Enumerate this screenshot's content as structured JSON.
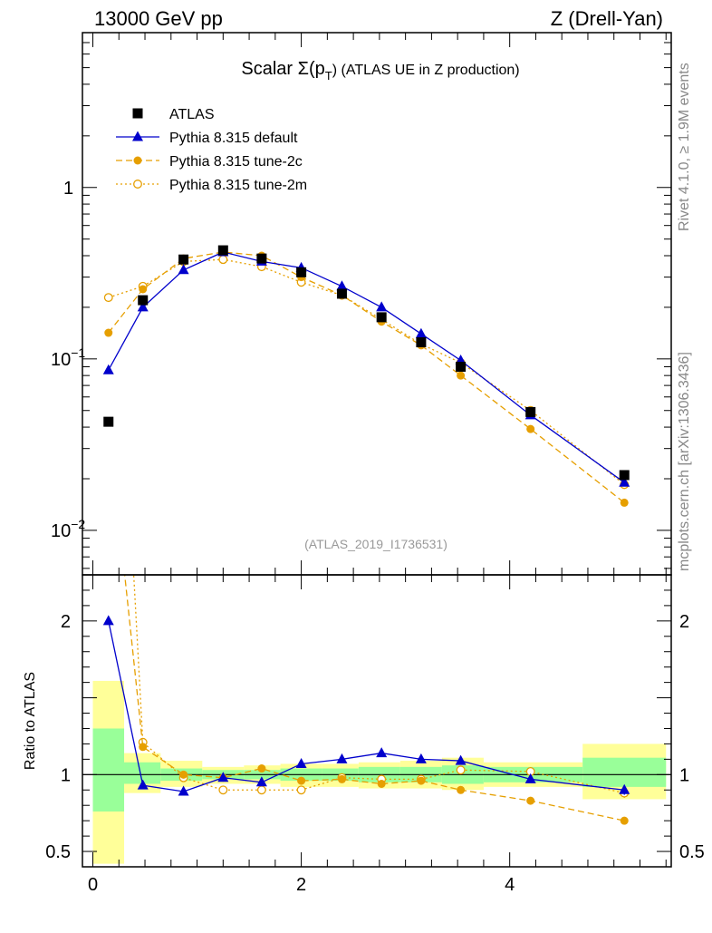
{
  "header": {
    "left": "13000 GeV pp",
    "right": "Z (Drell-Yan)"
  },
  "side_labels": {
    "rivet": "Rivet 4.1.0, ≥ 1.9M events",
    "mcplots": "mcplots.cern.ch [arXiv:1306.3436]"
  },
  "plot": {
    "title_prefix": "Scalar Σ(p",
    "title_sub": "T",
    "title_suffix": ") (ATLAS UE in Z production)",
    "analysis_id": "(ATLAS_2019_I1736531)",
    "ratio_ylabel": "Ratio to ATLAS"
  },
  "chart_data": {
    "type": "line",
    "x": [
      0.15,
      0.48,
      0.87,
      1.25,
      1.62,
      2.0,
      2.39,
      2.77,
      3.15,
      3.53,
      4.2,
      5.1
    ],
    "bin_edges": [
      0.0,
      0.3,
      0.65,
      1.05,
      1.45,
      1.8,
      2.2,
      2.55,
      2.95,
      3.35,
      3.75,
      4.7,
      5.5
    ],
    "main_panel": {
      "yscale": "log",
      "ylim": [
        0.0055,
        8.0
      ],
      "xlim": [
        -0.1,
        5.55
      ],
      "yticks": [
        {
          "value": 0.01,
          "base": "10",
          "exp": "−2"
        },
        {
          "value": 0.1,
          "base": "10",
          "exp": "−1"
        },
        {
          "value": 1,
          "base": "1",
          "exp": ""
        }
      ]
    },
    "ratio_panel": {
      "ylim": [
        0.4,
        2.3
      ],
      "yticks": [
        "0.5",
        "1",
        "2"
      ],
      "xticks": [
        "0",
        "2",
        "4"
      ]
    },
    "series": [
      {
        "name": "ATLAS",
        "color": "#000000",
        "marker": "square",
        "values": [
          0.043,
          0.22,
          0.38,
          0.43,
          0.385,
          0.32,
          0.24,
          0.175,
          0.125,
          0.09,
          0.049,
          0.021
        ],
        "ratio": [
          1,
          1,
          1,
          1,
          1,
          1,
          1,
          1,
          1,
          1,
          1,
          1
        ]
      },
      {
        "name": "Pythia 8.315 default",
        "color": "#0000cc",
        "marker": "triangle",
        "dash": "solid",
        "values": [
          0.086,
          0.2,
          0.33,
          0.42,
          0.37,
          0.34,
          0.265,
          0.2,
          0.14,
          0.098,
          0.047,
          0.019
        ],
        "ratio": [
          2.0,
          0.93,
          0.89,
          0.98,
          0.95,
          1.07,
          1.1,
          1.14,
          1.1,
          1.09,
          0.97,
          0.9
        ]
      },
      {
        "name": "Pythia 8.315 tune-2c",
        "color": "#e69f00",
        "marker": "filled-circle",
        "dash": "dashed",
        "values": [
          0.142,
          0.255,
          0.385,
          0.42,
          0.4,
          0.3,
          0.235,
          0.165,
          0.12,
          0.08,
          0.039,
          0.0145
        ],
        "ratio": [
          3.3,
          1.18,
          1.0,
          0.98,
          1.04,
          0.96,
          0.97,
          0.94,
          0.96,
          0.9,
          0.83,
          0.7
        ]
      },
      {
        "name": "Pythia 8.315 tune-2m",
        "color": "#e69f00",
        "marker": "open-circle",
        "dash": "dotted",
        "values": [
          0.228,
          0.265,
          0.37,
          0.38,
          0.345,
          0.28,
          0.235,
          0.17,
          0.122,
          0.095,
          0.05,
          0.0185
        ],
        "ratio": [
          5.3,
          1.21,
          0.98,
          0.9,
          0.9,
          0.9,
          0.98,
          0.97,
          0.97,
          1.03,
          1.02,
          0.88
        ]
      }
    ],
    "uncertainty_bands": {
      "inner_color": "#99ff99",
      "outer_color": "#ffff99",
      "inner": [
        [
          0.76,
          1.3
        ],
        [
          0.94,
          1.08
        ],
        [
          0.96,
          1.04
        ],
        [
          0.97,
          1.03
        ],
        [
          0.97,
          1.03
        ],
        [
          0.96,
          1.04
        ],
        [
          0.96,
          1.04
        ],
        [
          0.95,
          1.05
        ],
        [
          0.95,
          1.05
        ],
        [
          0.94,
          1.06
        ],
        [
          0.95,
          1.05
        ],
        [
          0.92,
          1.11
        ]
      ],
      "outer": [
        [
          0.42,
          1.61
        ],
        [
          0.88,
          1.14
        ],
        [
          0.92,
          1.09
        ],
        [
          0.94,
          1.05
        ],
        [
          0.94,
          1.06
        ],
        [
          0.92,
          1.07
        ],
        [
          0.92,
          1.07
        ],
        [
          0.91,
          1.08
        ],
        [
          0.91,
          1.09
        ],
        [
          0.9,
          1.11
        ],
        [
          0.92,
          1.08
        ],
        [
          0.84,
          1.2
        ]
      ]
    }
  }
}
